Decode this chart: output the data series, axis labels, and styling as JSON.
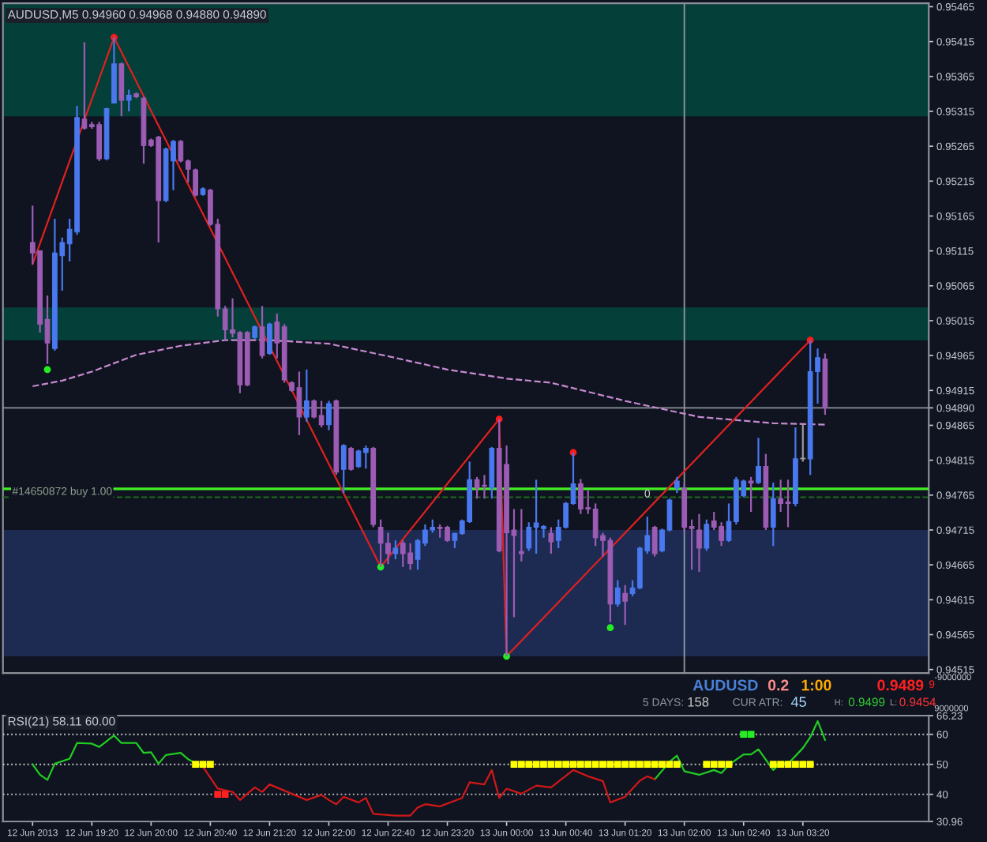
{
  "chart_data": [
    {
      "type": "candlestick",
      "title": "AUDUSD,M5 0.94960 0.94968 0.94880 0.94890",
      "x": [
        "2013-06-12T18:40",
        "2013-06-12T18:45",
        "2013-06-12T18:50",
        "2013-06-12T18:55",
        "2013-06-12T19:00",
        "2013-06-12T19:05",
        "2013-06-12T19:10",
        "2013-06-12T19:15",
        "2013-06-12T19:20",
        "2013-06-12T19:25",
        "2013-06-12T19:30",
        "2013-06-12T19:35",
        "2013-06-12T19:40",
        "2013-06-12T19:45",
        "2013-06-12T19:50",
        "2013-06-12T19:55",
        "2013-06-12T20:00",
        "2013-06-12T20:05",
        "2013-06-12T20:10",
        "2013-06-12T20:15",
        "2013-06-12T20:20",
        "2013-06-12T20:25",
        "2013-06-12T20:30",
        "2013-06-12T20:35",
        "2013-06-12T20:40",
        "2013-06-12T20:45",
        "2013-06-12T20:50",
        "2013-06-12T20:55",
        "2013-06-12T21:00",
        "2013-06-12T21:05",
        "2013-06-12T21:10",
        "2013-06-12T21:15",
        "2013-06-12T21:20",
        "2013-06-12T21:25",
        "2013-06-12T21:30",
        "2013-06-12T21:35",
        "2013-06-12T21:40",
        "2013-06-12T21:45",
        "2013-06-12T21:50",
        "2013-06-12T21:55",
        "2013-06-12T22:00",
        "2013-06-12T22:05",
        "2013-06-12T22:10",
        "2013-06-12T22:15",
        "2013-06-12T22:20",
        "2013-06-12T22:25",
        "2013-06-12T22:30",
        "2013-06-12T22:35",
        "2013-06-12T22:40",
        "2013-06-12T22:45",
        "2013-06-12T22:50",
        "2013-06-12T22:55",
        "2013-06-12T23:00",
        "2013-06-12T23:05",
        "2013-06-12T23:10",
        "2013-06-12T23:15",
        "2013-06-12T23:20",
        "2013-06-12T23:25",
        "2013-06-12T23:30",
        "2013-06-12T23:35",
        "2013-06-12T23:40",
        "2013-06-12T23:45",
        "2013-06-12T23:50",
        "2013-06-12T23:55",
        "2013-06-13T00:00",
        "2013-06-13T00:05",
        "2013-06-13T00:10",
        "2013-06-13T00:15",
        "2013-06-13T00:20",
        "2013-06-13T00:25",
        "2013-06-13T00:30",
        "2013-06-13T00:35",
        "2013-06-13T00:40",
        "2013-06-13T00:45",
        "2013-06-13T00:50",
        "2013-06-13T00:55",
        "2013-06-13T01:00",
        "2013-06-13T01:05",
        "2013-06-13T01:10",
        "2013-06-13T01:15",
        "2013-06-13T01:20",
        "2013-06-13T01:25",
        "2013-06-13T01:30",
        "2013-06-13T01:35",
        "2013-06-13T01:40",
        "2013-06-13T01:45",
        "2013-06-13T01:50",
        "2013-06-13T01:55",
        "2013-06-13T02:00",
        "2013-06-13T02:05",
        "2013-06-13T02:10",
        "2013-06-13T02:15",
        "2013-06-13T02:20",
        "2013-06-13T02:25",
        "2013-06-13T02:30",
        "2013-06-13T02:35",
        "2013-06-13T02:40",
        "2013-06-13T02:45",
        "2013-06-13T02:50",
        "2013-06-13T02:55",
        "2013-06-13T03:00",
        "2013-06-13T03:05",
        "2013-06-13T03:10",
        "2013-06-13T03:15",
        "2013-06-13T03:20",
        "2013-06-13T03:25",
        "2013-06-13T03:30",
        "2013-06-13T03:35"
      ],
      "ohlc": [
        [
          0.95127,
          0.9518,
          0.95096,
          0.95112
        ],
        [
          0.95115,
          0.95115,
          0.94998,
          0.9501
        ],
        [
          0.95017,
          0.95051,
          0.94953,
          0.94983
        ],
        [
          0.94975,
          0.95161,
          0.94972,
          0.95112
        ],
        [
          0.95108,
          0.95134,
          0.95058,
          0.95127
        ],
        [
          0.95125,
          0.95161,
          0.951,
          0.95146
        ],
        [
          0.95142,
          0.95323,
          0.95138,
          0.95306
        ],
        [
          0.95304,
          0.95414,
          0.95289,
          0.95291
        ],
        [
          0.95296,
          0.953,
          0.9529,
          0.95293
        ],
        [
          0.95296,
          0.953,
          0.95244,
          0.95247
        ],
        [
          0.95247,
          0.9532,
          0.95245,
          0.95319
        ],
        [
          0.95327,
          0.95421,
          0.95327,
          0.95383
        ],
        [
          0.95383,
          0.95385,
          0.95308,
          0.95331
        ],
        [
          0.95331,
          0.95346,
          0.95315,
          0.95338
        ],
        [
          0.9534,
          0.95342,
          0.95334,
          0.95336
        ],
        [
          0.95334,
          0.95336,
          0.9524,
          0.95266
        ],
        [
          0.95274,
          0.95276,
          0.95264,
          0.95266
        ],
        [
          0.95278,
          0.9528,
          0.95127,
          0.95187
        ],
        [
          0.95187,
          0.95263,
          0.95185,
          0.95261
        ],
        [
          0.95244,
          0.95274,
          0.95202,
          0.95272
        ],
        [
          0.95272,
          0.95274,
          0.95242,
          0.95244
        ],
        [
          0.95244,
          0.95246,
          0.95213,
          0.95232
        ],
        [
          0.95231,
          0.95233,
          0.95193,
          0.95195
        ],
        [
          0.95196,
          0.95206,
          0.95194,
          0.95204
        ],
        [
          0.95202,
          0.95204,
          0.95151,
          0.95153
        ],
        [
          0.95153,
          0.95161,
          0.95021,
          0.95032
        ],
        [
          0.95032,
          0.95036,
          0.94987,
          0.95002
        ],
        [
          0.95002,
          0.95047,
          0.94991,
          0.94997
        ],
        [
          0.94998,
          0.95,
          0.94911,
          0.94923
        ],
        [
          0.94998,
          0.95,
          0.94921,
          0.94923
        ],
        [
          0.94991,
          0.95008,
          0.94989,
          0.95006
        ],
        [
          0.95006,
          0.95036,
          0.94961,
          0.94965
        ],
        [
          0.94968,
          0.95012,
          0.94966,
          0.9501
        ],
        [
          0.95013,
          0.95025,
          0.94961,
          0.94983
        ],
        [
          0.95006,
          0.9501,
          0.94926,
          0.9493
        ],
        [
          0.94926,
          0.94928,
          0.94913,
          0.94915
        ],
        [
          0.94919,
          0.94942,
          0.94851,
          0.94877
        ],
        [
          0.94877,
          0.94945,
          0.9487,
          0.949
        ],
        [
          0.949,
          0.94902,
          0.94875,
          0.94877
        ],
        [
          0.94879,
          0.949,
          0.94862,
          0.94866
        ],
        [
          0.94866,
          0.949,
          0.94858,
          0.94896
        ],
        [
          0.949,
          0.94902,
          0.94794,
          0.94798
        ],
        [
          0.94802,
          0.94838,
          0.94768,
          0.94836
        ],
        [
          0.94832,
          0.94834,
          0.948,
          0.94802
        ],
        [
          0.94806,
          0.9483,
          0.94804,
          0.94828
        ],
        [
          0.94826,
          0.94836,
          0.94803,
          0.94832
        ],
        [
          0.94832,
          0.94834,
          0.94719,
          0.94723
        ],
        [
          0.94719,
          0.9473,
          0.94662,
          0.94696
        ],
        [
          0.94696,
          0.94711,
          0.94666,
          0.94681
        ],
        [
          0.94681,
          0.947,
          0.94673,
          0.94689
        ],
        [
          0.94696,
          0.947,
          0.94662,
          0.94681
        ],
        [
          0.94682,
          0.94696,
          0.94658,
          0.94667
        ],
        [
          0.94673,
          0.94702,
          0.94658,
          0.947
        ],
        [
          0.94696,
          0.94723,
          0.94692,
          0.94715
        ],
        [
          0.94715,
          0.9473,
          0.94711,
          0.94719
        ],
        [
          0.94719,
          0.94723,
          0.94704,
          0.94717
        ],
        [
          0.94719,
          0.94721,
          0.94698,
          0.947
        ],
        [
          0.947,
          0.94711,
          0.94689,
          0.9471
        ],
        [
          0.9471,
          0.9473,
          0.94708,
          0.94728
        ],
        [
          0.94727,
          0.94813,
          0.94725,
          0.94787
        ],
        [
          0.94787,
          0.94791,
          0.9476,
          0.94775
        ],
        [
          0.94779,
          0.94794,
          0.9476,
          0.94778
        ],
        [
          0.94775,
          0.94834,
          0.9476,
          0.94832
        ],
        [
          0.94832,
          0.94874,
          0.94683,
          0.94685
        ],
        [
          0.94809,
          0.94836,
          0.94534,
          0.94711
        ],
        [
          0.94715,
          0.94745,
          0.9459,
          0.94707
        ],
        [
          0.94684,
          0.94745,
          0.9467,
          0.94681
        ],
        [
          0.94689,
          0.94726,
          0.94685,
          0.94719
        ],
        [
          0.94719,
          0.94787,
          0.94681,
          0.94725
        ],
        [
          0.94717,
          0.94722,
          0.94704,
          0.9472
        ],
        [
          0.9471,
          0.94719,
          0.94681,
          0.94698
        ],
        [
          0.947,
          0.9473,
          0.94689,
          0.94719
        ],
        [
          0.94719,
          0.94755,
          0.94717,
          0.94753
        ],
        [
          0.94753,
          0.94826,
          0.94751,
          0.94781
        ],
        [
          0.94781,
          0.94788,
          0.94738,
          0.94745
        ],
        [
          0.94747,
          0.94772,
          0.94738,
          0.94745
        ],
        [
          0.94745,
          0.94753,
          0.94692,
          0.94704
        ],
        [
          0.94707,
          0.94711,
          0.94677,
          0.947
        ],
        [
          0.947,
          0.94704,
          0.94583,
          0.94609
        ],
        [
          0.94609,
          0.94643,
          0.94605,
          0.94632
        ],
        [
          0.94624,
          0.94636,
          0.94579,
          0.94613
        ],
        [
          0.94624,
          0.94643,
          0.9462,
          0.94632
        ],
        [
          0.94632,
          0.94691,
          0.9463,
          0.94689
        ],
        [
          0.94685,
          0.94734,
          0.94681,
          0.94707
        ],
        [
          0.94719,
          0.94721,
          0.94677,
          0.94681
        ],
        [
          0.94685,
          0.94717,
          0.94683,
          0.94715
        ],
        [
          0.94715,
          0.9476,
          0.94713,
          0.94758
        ],
        [
          0.94775,
          0.94791,
          0.94768,
          0.94785
        ],
        [
          0.94775,
          0.94783,
          0.94711,
          0.94719
        ],
        [
          0.9472,
          0.9473,
          0.94658,
          0.94717
        ],
        [
          0.94715,
          0.94738,
          0.94655,
          0.94689
        ],
        [
          0.94689,
          0.9473,
          0.94685,
          0.94723
        ],
        [
          0.94728,
          0.94741,
          0.94715,
          0.94719
        ],
        [
          0.9472,
          0.94726,
          0.94692,
          0.947
        ],
        [
          0.947,
          0.94753,
          0.94698,
          0.94727
        ],
        [
          0.94727,
          0.94791,
          0.94723,
          0.94787
        ],
        [
          0.94764,
          0.94787,
          0.94762,
          0.94785
        ],
        [
          0.94785,
          0.94791,
          0.94741,
          0.94782
        ],
        [
          0.94783,
          0.94847,
          0.94781,
          0.94806
        ],
        [
          0.94806,
          0.94824,
          0.94715,
          0.94719
        ],
        [
          0.94719,
          0.94783,
          0.94692,
          0.9476
        ],
        [
          0.9476,
          0.94787,
          0.94741,
          0.94753
        ],
        [
          0.94755,
          0.94787,
          0.94719,
          0.94753
        ],
        [
          0.94753,
          0.94862,
          0.94749,
          0.94817
        ],
        [
          0.94817,
          0.94866,
          0.94813,
          0.94818
        ],
        [
          0.94817,
          0.94987,
          0.94794,
          0.94942
        ],
        [
          0.94942,
          0.94975,
          0.94896,
          0.94962
        ],
        [
          0.9496,
          0.94968,
          0.9488,
          0.9489
        ]
      ],
      "colors": [
        "#9c5cb4",
        "#9c5cb4",
        "#9c5cb4",
        "#4a78ee",
        "#4a78ee",
        "#4a78ee",
        "#4a78ee",
        "#9c5cb4",
        "#9c5cb4",
        "#9c5cb4",
        "#4a78ee",
        "#4a78ee",
        "#9c5cb4",
        "#4a78ee",
        "#9c5cb4",
        "#9c5cb4",
        "#9c5cb4",
        "#9c5cb4",
        "#4a78ee",
        "#4a78ee",
        "#9c5cb4",
        "#9c5cb4",
        "#9c5cb4",
        "#4a78ee",
        "#9c5cb4",
        "#9c5cb4",
        "#9c5cb4",
        "#9c5cb4",
        "#9c5cb4",
        "#9c5cb4",
        "#4a78ee",
        "#9c5cb4",
        "#4a78ee",
        "#9c5cb4",
        "#9c5cb4",
        "#9c5cb4",
        "#9c5cb4",
        "#4a78ee",
        "#9c5cb4",
        "#9c5cb4",
        "#4a78ee",
        "#9c5cb4",
        "#4a78ee",
        "#9c5cb4",
        "#4a78ee",
        "#4a78ee",
        "#9c5cb4",
        "#9c5cb4",
        "#9c5cb4",
        "#4a78ee",
        "#9c5cb4",
        "#9c5cb4",
        "#4a78ee",
        "#4a78ee",
        "#4a78ee",
        "#9c5cb4",
        "#9c5cb4",
        "#4a78ee",
        "#4a78ee",
        "#4a78ee",
        "#9c5cb4",
        "#9c5cb4",
        "#4a78ee",
        "#9c5cb4",
        "#9c5cb4",
        "#9c5cb4",
        "#9c5cb4",
        "#4a78ee",
        "#4a78ee",
        "#4a78ee",
        "#9c5cb4",
        "#4a78ee",
        "#4a78ee",
        "#4a78ee",
        "#9c5cb4",
        "#9c5cb4",
        "#9c5cb4",
        "#9c5cb4",
        "#9c5cb4",
        "#4a78ee",
        "#9c5cb4",
        "#4a78ee",
        "#4a78ee",
        "#4a78ee",
        "#9c5cb4",
        "#4a78ee",
        "#4a78ee",
        "#4a78ee",
        "#9c5cb4",
        "#9c5cb4",
        "#9c5cb4",
        "#4a78ee",
        "#9c5cb4",
        "#9c5cb4",
        "#4a78ee",
        "#4a78ee",
        "#4a78ee",
        "#9c5cb4",
        "#4a78ee",
        "#9c5cb4",
        "#4a78ee",
        "#9c5cb4",
        "#9c5cb4",
        "#4a78ee",
        "#9a9a9a",
        "#4a78ee",
        "#4a78ee",
        "#9c5cb4"
      ],
      "series": [
        {
          "type": "line",
          "color": "#c78ad0",
          "line_style": "dashed",
          "x": [
            "2013-06-12T18:40",
            "2013-06-12T19:00",
            "2013-06-12T19:20",
            "2013-06-12T19:50",
            "2013-06-12T20:20",
            "2013-06-12T20:50",
            "2013-06-12T21:20",
            "2013-06-12T22:00",
            "2013-06-12T22:40",
            "2013-06-12T23:20",
            "2013-06-13T00:00",
            "2013-06-13T00:30",
            "2013-06-13T01:20",
            "2013-06-13T02:10",
            "2013-06-13T03:00",
            "2013-06-13T03:35"
          ],
          "values": [
            0.94921,
            0.94929,
            0.94942,
            0.94966,
            0.94979,
            0.94987,
            0.94987,
            0.94982,
            0.94964,
            0.94945,
            0.94932,
            0.94926,
            0.949,
            0.94877,
            0.94868,
            0.94866
          ]
        },
        {
          "type": "line",
          "color": "#e02020",
          "line_style": "solid",
          "x": [
            "2013-06-12T18:40",
            "2013-06-12T19:35",
            "2013-06-12T22:35",
            "2013-06-12T23:55",
            "2013-06-13T00:00",
            "2013-06-13T03:25"
          ],
          "values": [
            0.95096,
            0.95421,
            0.94662,
            0.94874,
            0.94534,
            0.94987
          ]
        },
        {
          "type": "scatter",
          "color": "#ff1a1a",
          "marker": "circle",
          "x": [
            "2013-06-12T19:35",
            "2013-06-12T23:55",
            "2013-06-13T00:45",
            "2013-06-13T03:25"
          ],
          "values": [
            0.95421,
            0.94874,
            0.94826,
            0.94987
          ]
        },
        {
          "type": "scatter",
          "color": "#22ee22",
          "marker": "circle",
          "x": [
            "2013-06-12T18:50",
            "2013-06-12T22:35",
            "2013-06-13T00:00",
            "2013-06-13T01:10"
          ],
          "values": [
            0.94945,
            0.94662,
            0.94534,
            0.94575
          ]
        }
      ],
      "bands": [
        {
          "axis": "y",
          "from": 0.95308,
          "to": 0.9547,
          "color": "#053f3a"
        },
        {
          "axis": "y",
          "from": 0.94987,
          "to": 0.95034,
          "color": "#053f3a"
        },
        {
          "axis": "y",
          "from": 0.94534,
          "to": 0.94715,
          "color": "#1d2b52"
        }
      ],
      "ref_lines": [
        {
          "axis": "y",
          "value": 0.9489,
          "color": "#8c929c",
          "line_style": "solid"
        },
        {
          "axis": "x",
          "value": "2013-06-13T02:00",
          "color": "#8c929c",
          "line_style": "solid"
        },
        {
          "axis": "y",
          "value": 0.94774,
          "color": "#44ee22",
          "line_style": "solid"
        },
        {
          "axis": "y",
          "value": 0.94762,
          "color": "#1f6a1f",
          "line_style": "dashed",
          "label": "#14650872 buy 1.00"
        }
      ],
      "annotations": [
        {
          "text": "0",
          "x": "2013-06-13T01:35",
          "y": 0.94766
        }
      ],
      "xlim": [
        "2013-06-12T18:20",
        "2013-06-13T04:45"
      ],
      "ylim": [
        0.9451,
        0.9547
      ],
      "yticks": [
        0.95465,
        0.95415,
        0.95365,
        0.95315,
        0.95265,
        0.95215,
        0.95165,
        0.95115,
        0.95065,
        0.95015,
        0.94965,
        0.94915,
        {
          "value": 0.9489,
          "label": "0.94890"
        },
        0.94865,
        0.94815,
        0.94765,
        0.94715,
        0.94665,
        0.94615,
        0.94565,
        0.94515
      ],
      "tick_labels": "y"
    },
    {
      "type": "other",
      "annotations": [
        "AUDUSD",
        "0.2",
        "1:00",
        "0.9489",
        "9",
        "5 DAYS:",
        "158",
        "CUR ATR:",
        "45",
        "H:",
        "0.9499",
        "L:",
        "0.9454",
        "-9000000",
        "9000000"
      ],
      "colors": [
        "#4a80d8",
        "#ff8c8c",
        "#ffaa00",
        "#ff2020",
        "#ff2020",
        "#9098a4",
        "#c8c8c8",
        "#9098a4",
        "#a8d8ff",
        "#9098a4",
        "#33cc33",
        "#9098a4",
        "#ff3333",
        "#c8ccd4",
        "#c8ccd4"
      ]
    },
    {
      "type": "line",
      "title": "RSI(21) 58.11 60.00",
      "series": [
        {
          "type": "line",
          "color": "#22cc22",
          "x": [
            "2013-06-12T18:40",
            "2013-06-12T18:45",
            "2013-06-12T18:50",
            "2013-06-12T18:55",
            "2013-06-12T19:05",
            "2013-06-12T19:10",
            "2013-06-12T19:20",
            "2013-06-12T19:25",
            "2013-06-12T19:35",
            "2013-06-12T19:40",
            "2013-06-12T19:50",
            "2013-06-12T19:55",
            "2013-06-12T20:00",
            "2013-06-12T20:05",
            "2013-06-12T20:10",
            "2013-06-12T20:20",
            "2013-06-12T20:25",
            "2013-06-12T20:35",
            "2013-06-12T22:50",
            "2013-06-13T01:40",
            "2013-06-13T01:50",
            "2013-06-13T01:55",
            "2013-06-13T02:00",
            "2013-06-13T02:10",
            "2013-06-13T02:20",
            "2013-06-13T02:25",
            "2013-06-13T02:30",
            "2013-06-13T02:40",
            "2013-06-13T02:45",
            "2013-06-13T02:50",
            "2013-06-13T03:00",
            "2013-06-13T03:05",
            "2013-06-13T03:10",
            "2013-06-13T03:20",
            "2013-06-13T03:25",
            "2013-06-13T03:30",
            "2013-06-13T03:35"
          ],
          "values": [
            50.0,
            46.5,
            44.8,
            50.2,
            51.9,
            57.1,
            56.9,
            55.8,
            59.6,
            57.1,
            57.1,
            53.8,
            54.0,
            50.2,
            53.1,
            53.8,
            51.7,
            49.2,
            null,
            45.0,
            50.8,
            52.9,
            47.7,
            46.5,
            48.1,
            47.1,
            49.8,
            53.3,
            53.3,
            55.0,
            48.1,
            50.6,
            50.2,
            55.4,
            59.0,
            64.4,
            58.1
          ]
        },
        {
          "type": "line",
          "color": "#d01818",
          "x": [
            "2013-06-12T20:35",
            "2013-06-12T20:45",
            "2013-06-12T20:55",
            "2013-06-12T21:00",
            "2013-06-12T21:10",
            "2013-06-12T21:15",
            "2013-06-12T21:20",
            "2013-06-12T21:35",
            "2013-06-12T21:45",
            "2013-06-12T21:55",
            "2013-06-12T22:00",
            "2013-06-12T22:05",
            "2013-06-12T22:10",
            "2013-06-12T22:20",
            "2013-06-12T22:25",
            "2013-06-12T22:30",
            "2013-06-12T22:45",
            "2013-06-12T22:55",
            "2013-06-12T23:00",
            "2013-06-12T23:05",
            "2013-06-12T23:15",
            "2013-06-12T23:30",
            "2013-06-12T23:35",
            "2013-06-12T23:45",
            "2013-06-12T23:50",
            "2013-06-12T23:55",
            "2013-06-13T00:00",
            "2013-06-13T00:10",
            "2013-06-13T00:20",
            "2013-06-13T00:30",
            "2013-06-13T00:45",
            "2013-06-13T00:55",
            "2013-06-13T01:05",
            "2013-06-13T01:10",
            "2013-06-13T01:20",
            "2013-06-13T01:30",
            "2013-06-13T01:35",
            "2013-06-13T01:40"
          ],
          "values": [
            49.2,
            41.9,
            40.8,
            38.1,
            42.3,
            40.8,
            43.3,
            40.2,
            38.1,
            39.8,
            38.1,
            36.7,
            39.2,
            37.3,
            38.8,
            33.5,
            32.9,
            32.9,
            35.6,
            36.7,
            36.0,
            38.8,
            44.0,
            43.3,
            48.1,
            38.8,
            41.9,
            40.2,
            42.9,
            42.3,
            48.1,
            46.0,
            44.4,
            37.3,
            39.2,
            44.6,
            46.0,
            45.0
          ]
        },
        {
          "type": "scatter",
          "color": "#ffff00",
          "marker": "square",
          "x": [
            "2013-06-12T20:30",
            "2013-06-12T20:35",
            "2013-06-12T20:40",
            "2013-06-13T00:05",
            "2013-06-13T00:10",
            "2013-06-13T00:15",
            "2013-06-13T00:20",
            "2013-06-13T00:25",
            "2013-06-13T00:30",
            "2013-06-13T00:35",
            "2013-06-13T00:40",
            "2013-06-13T00:45",
            "2013-06-13T00:50",
            "2013-06-13T00:55",
            "2013-06-13T01:00",
            "2013-06-13T01:05",
            "2013-06-13T01:10",
            "2013-06-13T01:15",
            "2013-06-13T01:20",
            "2013-06-13T01:25",
            "2013-06-13T01:30",
            "2013-06-13T01:35",
            "2013-06-13T01:40",
            "2013-06-13T01:45",
            "2013-06-13T01:50",
            "2013-06-13T01:55",
            "2013-06-13T02:15",
            "2013-06-13T02:20",
            "2013-06-13T02:25",
            "2013-06-13T02:30",
            "2013-06-13T03:00",
            "2013-06-13T03:05",
            "2013-06-13T03:10",
            "2013-06-13T03:15",
            "2013-06-13T03:20",
            "2013-06-13T03:25"
          ],
          "values": [
            50,
            50,
            50,
            50,
            50,
            50,
            50,
            50,
            50,
            50,
            50,
            50,
            50,
            50,
            50,
            50,
            50,
            50,
            50,
            50,
            50,
            50,
            50,
            50,
            50,
            50,
            50,
            50,
            50,
            50,
            50,
            50,
            50,
            50,
            50,
            50
          ]
        },
        {
          "type": "scatter",
          "color": "#ff2020",
          "marker": "square",
          "x": [
            "2013-06-12T20:45",
            "2013-06-12T20:50"
          ],
          "values": [
            40,
            40
          ]
        },
        {
          "type": "scatter",
          "color": "#22ee22",
          "marker": "square",
          "x": [
            "2013-06-13T02:40",
            "2013-06-13T02:45"
          ],
          "values": [
            60,
            60
          ]
        }
      ],
      "ref_lines": [
        {
          "axis": "y",
          "value": 60,
          "color": "#c0c0c0",
          "line_style": "dotted"
        },
        {
          "axis": "y",
          "value": 50,
          "color": "#c0c0c0",
          "line_style": "dotted"
        },
        {
          "axis": "y",
          "value": 40,
          "color": "#c0c0c0",
          "line_style": "dotted"
        }
      ],
      "xlim": [
        "2013-06-12T18:20",
        "2013-06-13T04:45"
      ],
      "ylim": [
        30.96,
        66.23
      ],
      "yticks": [
        30.96,
        40,
        50,
        60,
        66.23
      ],
      "xticks": [
        {
          "value": "2013-06-12T18:40",
          "label": "12 Jun 2013"
        },
        {
          "value": "2013-06-12T19:20",
          "label": "12 Jun 19:20"
        },
        {
          "value": "2013-06-12T20:00",
          "label": "12 Jun 20:00"
        },
        {
          "value": "2013-06-12T20:40",
          "label": "12 Jun 20:40"
        },
        {
          "value": "2013-06-12T21:20",
          "label": "12 Jun 21:20"
        },
        {
          "value": "2013-06-12T22:00",
          "label": "12 Jun 22:00"
        },
        {
          "value": "2013-06-12T22:40",
          "label": "12 Jun 22:40"
        },
        {
          "value": "2013-06-12T23:20",
          "label": "12 Jun 23:20"
        },
        {
          "value": "2013-06-13T00:00",
          "label": "13 Jun 00:00"
        },
        {
          "value": "2013-06-13T00:40",
          "label": "13 Jun 00:40"
        },
        {
          "value": "2013-06-13T01:20",
          "label": "13 Jun 01:20"
        },
        {
          "value": "2013-06-13T02:00",
          "label": "13 Jun 02:00"
        },
        {
          "value": "2013-06-13T02:40",
          "label": "13 Jun 02:40"
        },
        {
          "value": "2013-06-13T03:20",
          "label": "13 Jun 03:20"
        }
      ]
    }
  ]
}
